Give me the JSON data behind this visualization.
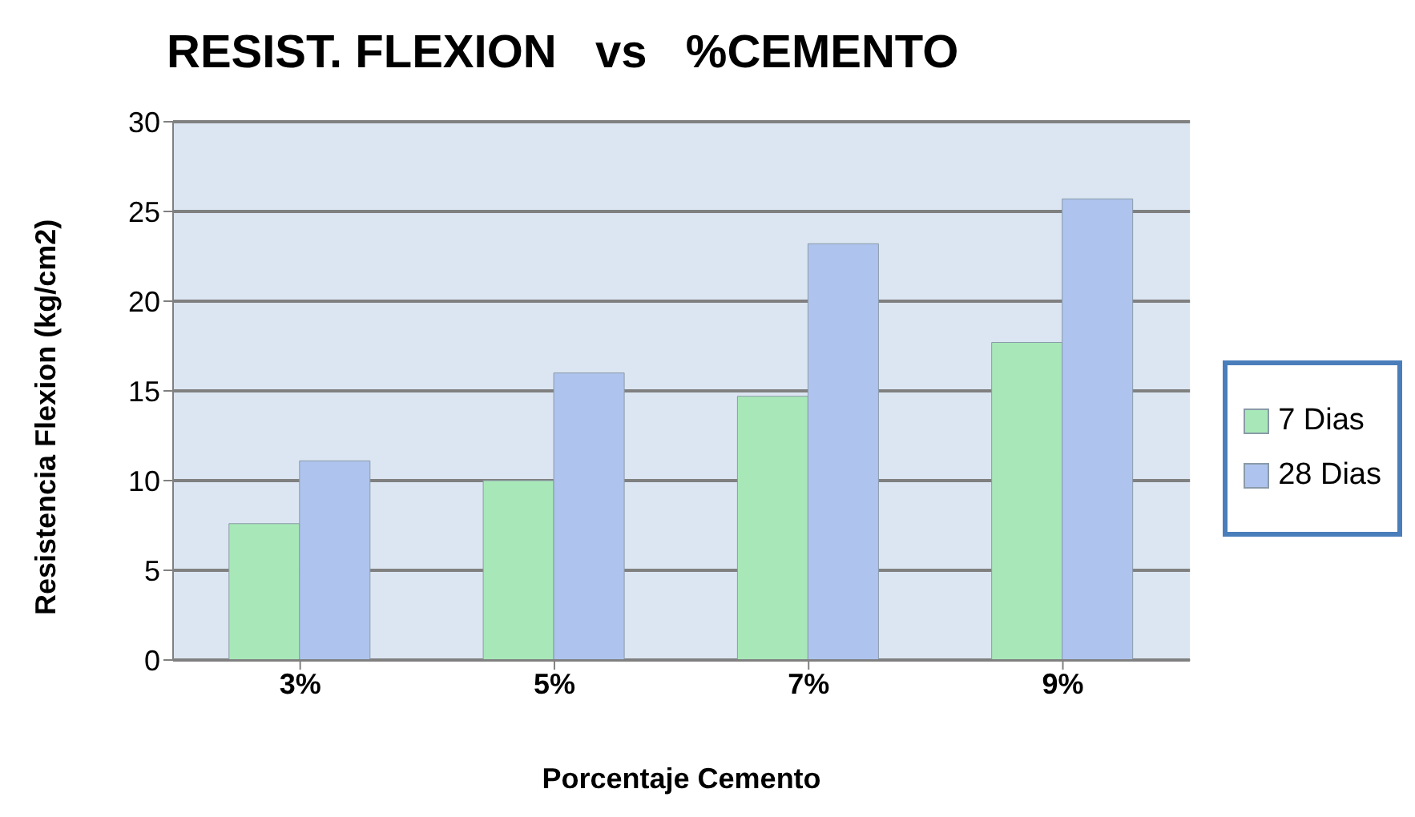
{
  "chart_data": {
    "type": "bar",
    "title": "RESIST. FLEXION   vs   %CEMENTO",
    "xlabel": "Porcentaje Cemento",
    "ylabel": "Resistencia Flexion (kg/cm2)",
    "categories": [
      "3%",
      "5%",
      "7%",
      "9%"
    ],
    "series": [
      {
        "name": "7 Dias",
        "color": "#a8e8b8",
        "values": [
          7.6,
          10,
          14.7,
          17.7
        ]
      },
      {
        "name": "28 Dias",
        "color": "#aec4ee",
        "values": [
          11.1,
          16,
          23.2,
          25.7
        ]
      }
    ],
    "ylim": [
      0,
      30
    ],
    "yticks": [
      0,
      5,
      10,
      15,
      20,
      25,
      30
    ],
    "grid": "y",
    "legend": "right"
  }
}
